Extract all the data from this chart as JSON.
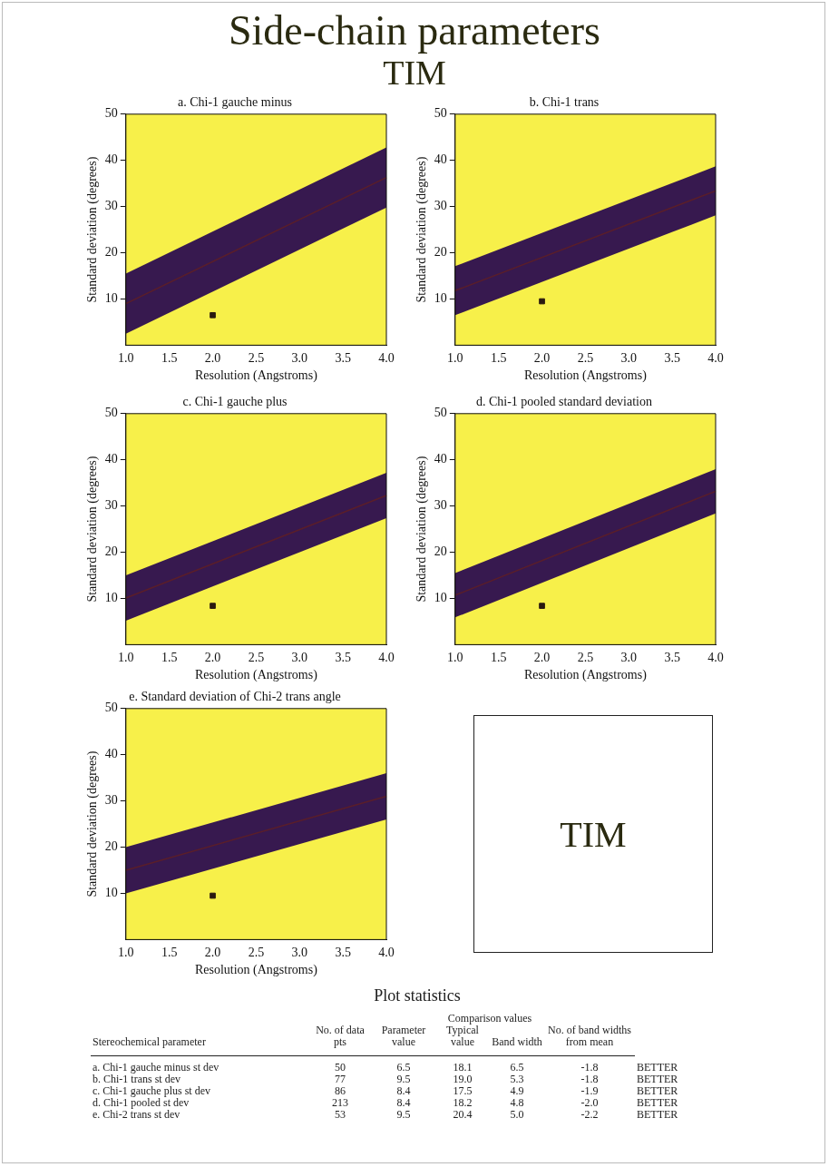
{
  "chart_data": [
    {
      "type": "other",
      "title": "Side-chain parameters",
      "subtitle": "TIM"
    },
    {
      "type": "line",
      "title": "a. Chi-1 gauche minus",
      "xlabel": "Resolution (Angstroms)",
      "ylabel": "Standard deviation (degrees)",
      "xlim": [
        1,
        4
      ],
      "ylim": [
        0,
        50
      ],
      "xticks": [
        {
          "value": 1,
          "label": "1.0"
        },
        {
          "value": 1.5,
          "label": "1.5"
        },
        {
          "value": 2,
          "label": "2.0"
        },
        {
          "value": 2.5,
          "label": "2.5"
        },
        {
          "value": 3,
          "label": "3.0"
        },
        {
          "value": 3.5,
          "label": "3.5"
        },
        {
          "value": 4,
          "label": "4.0"
        }
      ],
      "yticks": [
        10,
        20,
        30,
        40,
        50
      ],
      "grid": false,
      "legend": false,
      "series": [
        {
          "type": "line",
          "color": "#5a1e2a",
          "x": [
            1,
            4
          ],
          "values": [
            9,
            36.3
          ],
          "lower": [
            2.5,
            29.8
          ],
          "upper": [
            15.5,
            42.8
          ]
        },
        {
          "type": "scatter",
          "color": "#2a1a10",
          "marker": "square",
          "x": [
            2
          ],
          "values": [
            6.5
          ]
        }
      ]
    },
    {
      "type": "line",
      "title": "b. Chi-1 trans",
      "xlabel": "Resolution (Angstroms)",
      "ylabel": "Standard deviation (degrees)",
      "xlim": [
        1,
        4
      ],
      "ylim": [
        0,
        50
      ],
      "xticks": [
        {
          "value": 1,
          "label": "1.0"
        },
        {
          "value": 1.5,
          "label": "1.5"
        },
        {
          "value": 2,
          "label": "2.0"
        },
        {
          "value": 2.5,
          "label": "2.5"
        },
        {
          "value": 3,
          "label": "3.0"
        },
        {
          "value": 3.5,
          "label": "3.5"
        },
        {
          "value": 4,
          "label": "4.0"
        }
      ],
      "yticks": [
        10,
        20,
        30,
        40,
        50
      ],
      "grid": false,
      "legend": false,
      "series": [
        {
          "type": "line",
          "color": "#5a1e2a",
          "x": [
            1,
            4
          ],
          "values": [
            11.8,
            33.4
          ],
          "lower": [
            6.5,
            28.1
          ],
          "upper": [
            17.1,
            38.7
          ]
        },
        {
          "type": "scatter",
          "color": "#2a1a10",
          "marker": "square",
          "x": [
            2
          ],
          "values": [
            9.5
          ]
        }
      ]
    },
    {
      "type": "line",
      "title": "c. Chi-1 gauche plus",
      "xlabel": "Resolution (Angstroms)",
      "ylabel": "Standard deviation (degrees)",
      "xlim": [
        1,
        4
      ],
      "ylim": [
        0,
        50
      ],
      "xticks": [
        {
          "value": 1,
          "label": "1.0"
        },
        {
          "value": 1.5,
          "label": "1.5"
        },
        {
          "value": 2,
          "label": "2.0"
        },
        {
          "value": 2.5,
          "label": "2.5"
        },
        {
          "value": 3,
          "label": "3.0"
        },
        {
          "value": 3.5,
          "label": "3.5"
        },
        {
          "value": 4,
          "label": "4.0"
        }
      ],
      "yticks": [
        10,
        20,
        30,
        40,
        50
      ],
      "grid": false,
      "legend": false,
      "series": [
        {
          "type": "line",
          "color": "#5a1e2a",
          "x": [
            1,
            4
          ],
          "values": [
            10.1,
            32.3
          ],
          "lower": [
            5.2,
            27.4
          ],
          "upper": [
            15,
            37.2
          ]
        },
        {
          "type": "scatter",
          "color": "#2a1a10",
          "marker": "square",
          "x": [
            2
          ],
          "values": [
            8.4
          ]
        }
      ]
    },
    {
      "type": "line",
      "title": "d. Chi-1 pooled standard deviation",
      "xlabel": "Resolution (Angstroms)",
      "ylabel": "Standard deviation (degrees)",
      "xlim": [
        1,
        4
      ],
      "ylim": [
        0,
        50
      ],
      "xticks": [
        {
          "value": 1,
          "label": "1.0"
        },
        {
          "value": 1.5,
          "label": "1.5"
        },
        {
          "value": 2,
          "label": "2.0"
        },
        {
          "value": 2.5,
          "label": "2.5"
        },
        {
          "value": 3,
          "label": "3.0"
        },
        {
          "value": 3.5,
          "label": "3.5"
        },
        {
          "value": 4,
          "label": "4.0"
        }
      ],
      "yticks": [
        10,
        20,
        30,
        40,
        50
      ],
      "grid": false,
      "legend": false,
      "series": [
        {
          "type": "line",
          "color": "#5a1e2a",
          "x": [
            1,
            4
          ],
          "values": [
            10.7,
            33.2
          ],
          "lower": [
            5.9,
            28.4
          ],
          "upper": [
            15.5,
            38
          ]
        },
        {
          "type": "scatter",
          "color": "#2a1a10",
          "marker": "square",
          "x": [
            2
          ],
          "values": [
            8.4
          ]
        }
      ]
    },
    {
      "type": "line",
      "title": "e. Standard deviation of Chi-2 trans angle",
      "xlabel": "Resolution (Angstroms)",
      "ylabel": "Standard deviation (degrees)",
      "xlim": [
        1,
        4
      ],
      "ylim": [
        0,
        50
      ],
      "xticks": [
        {
          "value": 1,
          "label": "1.0"
        },
        {
          "value": 1.5,
          "label": "1.5"
        },
        {
          "value": 2,
          "label": "2.0"
        },
        {
          "value": 2.5,
          "label": "2.5"
        },
        {
          "value": 3,
          "label": "3.0"
        },
        {
          "value": 3.5,
          "label": "3.5"
        },
        {
          "value": 4,
          "label": "4.0"
        }
      ],
      "yticks": [
        10,
        20,
        30,
        40,
        50
      ],
      "grid": false,
      "legend": false,
      "series": [
        {
          "type": "line",
          "color": "#5a1e2a",
          "x": [
            1,
            4
          ],
          "values": [
            15,
            31
          ],
          "lower": [
            10,
            26
          ],
          "upper": [
            20,
            36
          ]
        },
        {
          "type": "scatter",
          "color": "#2a1a10",
          "marker": "square",
          "x": [
            2
          ],
          "values": [
            9.5
          ]
        }
      ]
    },
    {
      "type": "other",
      "annotations": [
        "TIM"
      ]
    },
    {
      "type": "other",
      "title": "Plot statistics",
      "annotations": [
        "Comparison values",
        "Stereochemical parameter",
        "No. of data pts",
        "Parameter value",
        "Typical value",
        "Band width",
        "No. of band widths from mean",
        "a. Chi-1 gauche minus st dev",
        "50",
        "6.5",
        "18.1",
        "6.5",
        "-1.8",
        "BETTER",
        "b. Chi-1 trans st dev",
        "77",
        "9.5",
        "19.0",
        "5.3",
        "-1.8",
        "BETTER",
        "c. Chi-1 gauche plus st dev",
        "86",
        "8.4",
        "17.5",
        "4.9",
        "-1.9",
        "BETTER",
        "d. Chi-1 pooled st dev",
        "213",
        "8.4",
        "18.2",
        "4.8",
        "-2.0",
        "BETTER",
        "e. Chi-2 trans st dev",
        "53",
        "9.5",
        "20.4",
        "5.0",
        "-2.2",
        "BETTER"
      ]
    }
  ]
}
